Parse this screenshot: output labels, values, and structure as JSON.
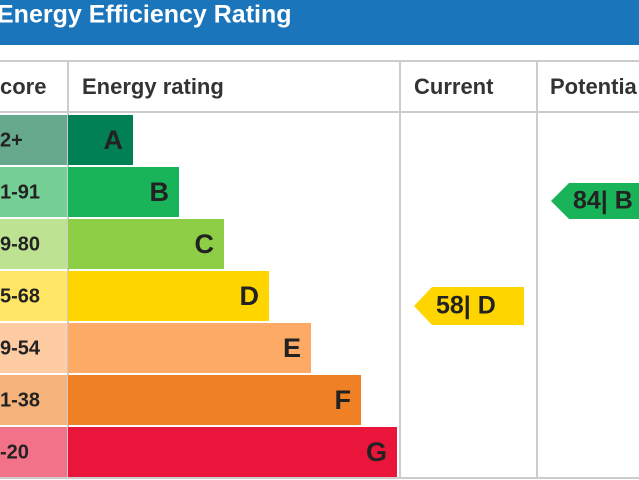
{
  "header": {
    "title": "Energy Efficiency Rating"
  },
  "columns": [
    "core",
    "Energy rating",
    "Current",
    "Potentia"
  ],
  "bands": [
    {
      "range": "2+",
      "letter": "A",
      "color": "#008054",
      "tint": "#66a98c"
    },
    {
      "range": "1-91",
      "letter": "B",
      "color": "#19b459",
      "tint": "#75d096"
    },
    {
      "range": "9-80",
      "letter": "C",
      "color": "#8dce46",
      "tint": "#bde392"
    },
    {
      "range": "5-68",
      "letter": "D",
      "color": "#ffd500",
      "tint": "#ffe666"
    },
    {
      "range": "9-54",
      "letter": "E",
      "color": "#fcaa65",
      "tint": "#fdcca3"
    },
    {
      "range": "1-38",
      "letter": "F",
      "color": "#ef8023",
      "tint": "#f5b37b"
    },
    {
      "range": "-20",
      "letter": "G",
      "color": "#e9153b",
      "tint": "#f27389"
    }
  ],
  "current": {
    "label": "58| D",
    "color": "#ffd500"
  },
  "potential": {
    "label": "84| B",
    "color": "#19b459"
  }
}
